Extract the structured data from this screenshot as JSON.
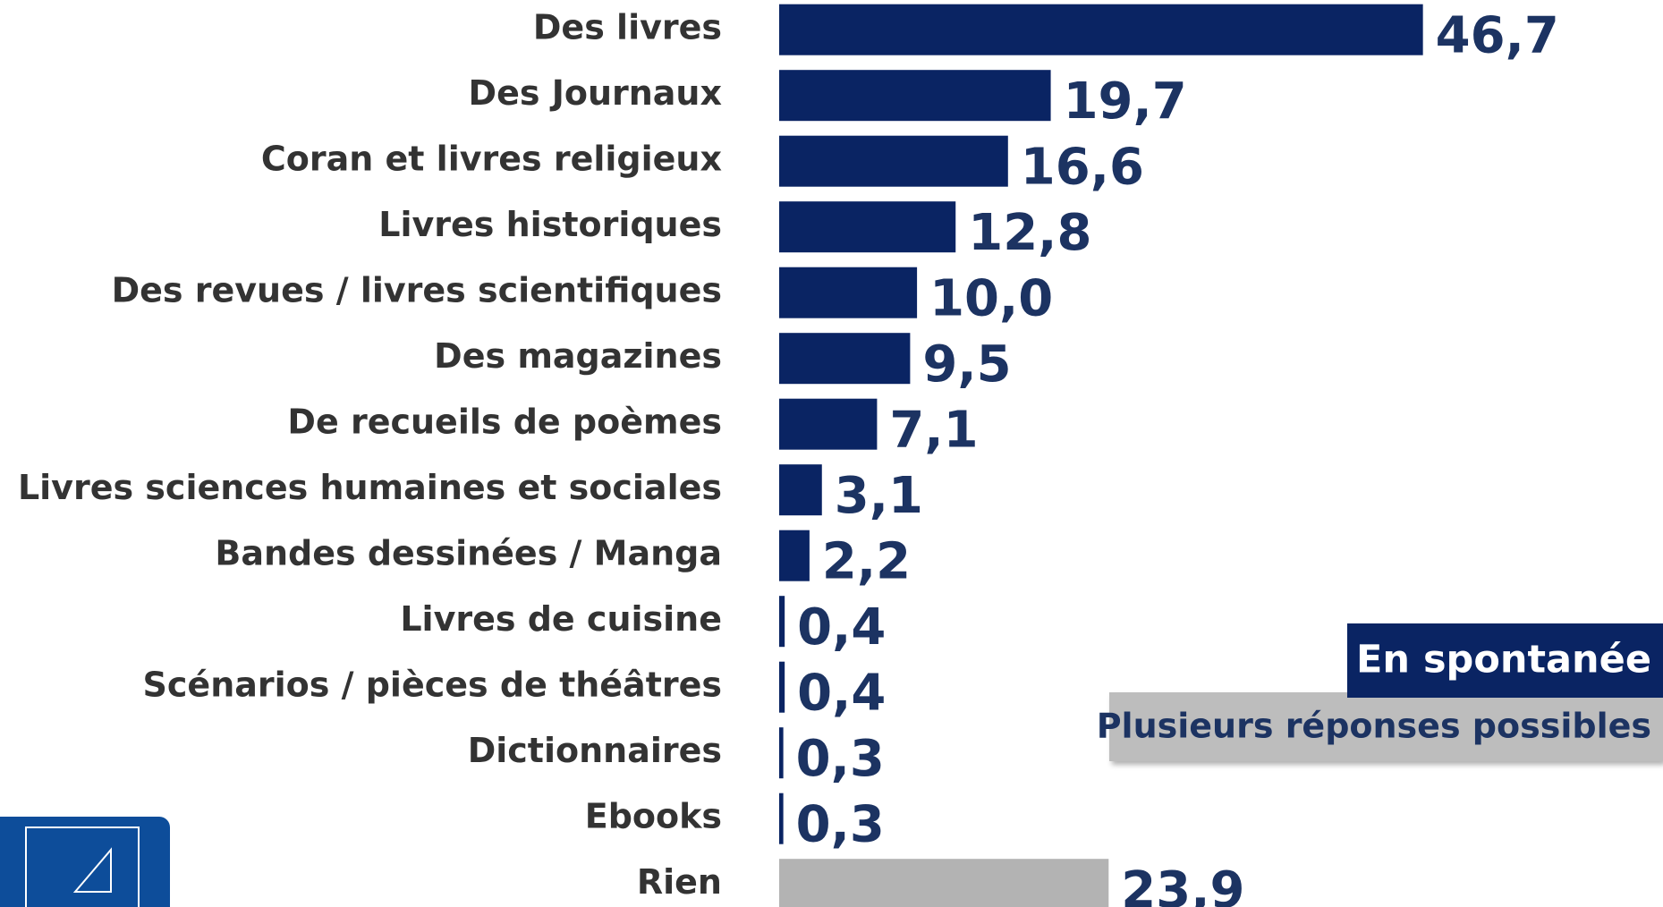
{
  "chart_data": {
    "type": "barh",
    "categories": [
      "Des livres",
      "Des Journaux",
      "Coran et livres religieux",
      "Livres historiques",
      "Des revues / livres scientifiques",
      "Des magazines",
      "De recueils de poèmes",
      "Livres sciences humaines et sociales",
      "Bandes dessinées / Manga",
      "Livres de cuisine",
      "Scénarios / pièces de théâtres",
      "Dictionnaires",
      "Ebooks",
      "Rien"
    ],
    "values": [
      46.7,
      19.7,
      16.6,
      12.8,
      10.0,
      9.5,
      7.1,
      3.1,
      2.2,
      0.4,
      0.4,
      0.3,
      0.3,
      23.9
    ],
    "value_labels": [
      "46,7",
      "19,7",
      "16,6",
      "12,8",
      "10,0",
      "9,5",
      "7,1",
      "3,1",
      "2,2",
      "0,4",
      "0,4",
      "0,3",
      "0,3",
      "23,9"
    ],
    "colors": [
      "#0a2463",
      "#0a2463",
      "#0a2463",
      "#0a2463",
      "#0a2463",
      "#0a2463",
      "#0a2463",
      "#0a2463",
      "#0a2463",
      "#0a2463",
      "#0a2463",
      "#0a2463",
      "#0a2463",
      "#b3b3b3"
    ],
    "annotations": [
      "En spontanée",
      "Plusieurs réponses possibles"
    ]
  }
}
